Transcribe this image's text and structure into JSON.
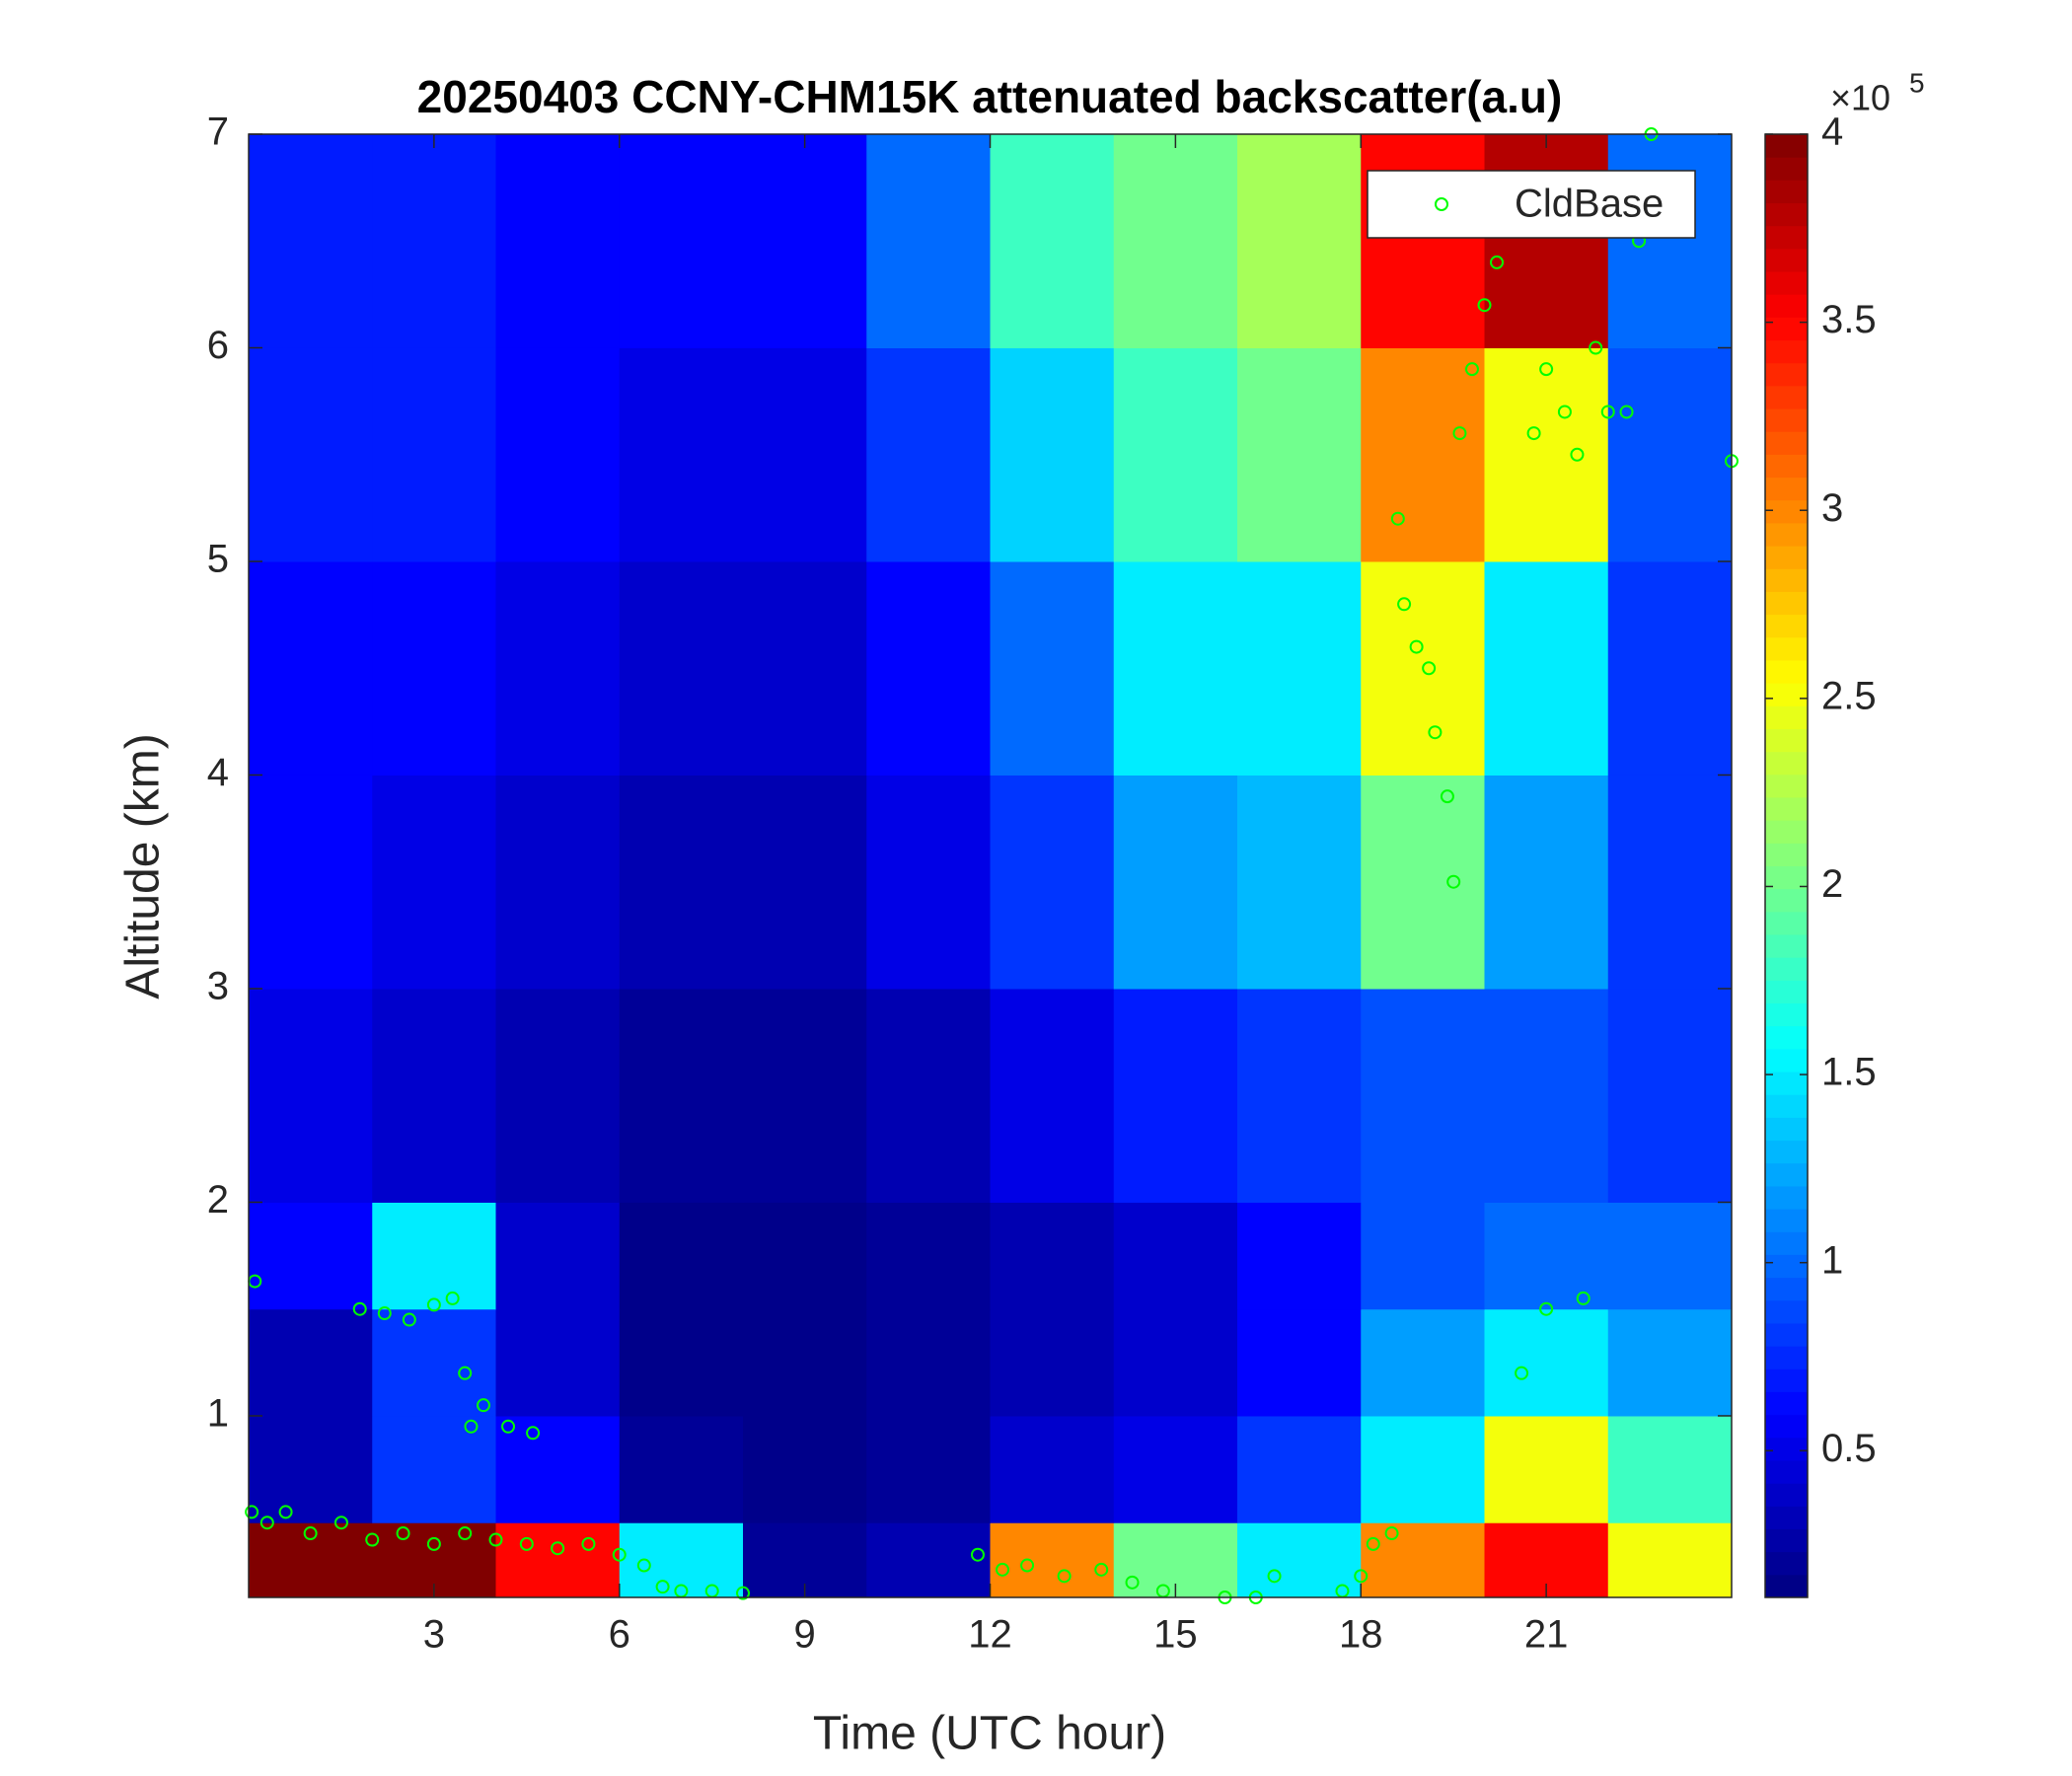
{
  "chart_data": {
    "type": "heatmap",
    "title": "20250403 CCNY-CHM15K attenuated backscatter(a.u)",
    "xlabel": "Time (UTC hour)",
    "ylabel": "Altitude (km)",
    "xlim": [
      0,
      24
    ],
    "xticks": [
      3,
      6,
      9,
      12,
      15,
      18,
      21
    ],
    "ylim": [
      0.15,
      7
    ],
    "yticks": [
      1,
      2,
      3,
      4,
      5,
      6,
      7
    ],
    "colormap": "jet",
    "clim": [
      0.11,
      4
    ],
    "cticks": [
      0.5,
      1,
      1.5,
      2,
      2.5,
      3,
      3.5,
      4
    ],
    "cexponent": {
      "base": "×10",
      "power": "5"
    },
    "x_bins": [
      0,
      2,
      4,
      6,
      8,
      10,
      12,
      14,
      16,
      18,
      20,
      22,
      24
    ],
    "y_bins": [
      0.15,
      0.5,
      1,
      1.5,
      2,
      3,
      4,
      5,
      6,
      7
    ],
    "z": [
      [
        4,
        4,
        3.5,
        1.5,
        0.2,
        0.3,
        3,
        2,
        1.5,
        3,
        3.5,
        2.5
      ],
      [
        0.3,
        0.8,
        0.6,
        0.2,
        0.15,
        0.2,
        0.4,
        0.5,
        0.8,
        1.5,
        2.5,
        1.8
      ],
      [
        0.3,
        0.8,
        0.4,
        0.15,
        0.15,
        0.2,
        0.3,
        0.4,
        0.6,
        1.2,
        1.5,
        1.2
      ],
      [
        0.6,
        1.5,
        0.4,
        0.15,
        0.15,
        0.2,
        0.3,
        0.4,
        0.6,
        0.9,
        1,
        1
      ],
      [
        0.5,
        0.4,
        0.3,
        0.2,
        0.2,
        0.3,
        0.5,
        0.7,
        0.8,
        0.9,
        0.9,
        0.8
      ],
      [
        0.6,
        0.5,
        0.4,
        0.3,
        0.3,
        0.5,
        0.8,
        1.2,
        1.3,
        2,
        1.2,
        0.8
      ],
      [
        0.6,
        0.6,
        0.5,
        0.4,
        0.4,
        0.6,
        1,
        1.5,
        1.5,
        2.5,
        1.5,
        0.8
      ],
      [
        0.7,
        0.7,
        0.6,
        0.5,
        0.5,
        0.8,
        1.4,
        1.8,
        2,
        3,
        2.5,
        0.9
      ],
      [
        0.7,
        0.7,
        0.6,
        0.6,
        0.6,
        1,
        1.8,
        2,
        2.2,
        3.5,
        3.8,
        1
      ]
    ],
    "series": [
      {
        "name": "CldBase",
        "color": "#00ff00",
        "x": [
          0.05,
          0.1,
          0.3,
          0.6,
          1,
          1.5,
          2,
          2.5,
          3,
          3.5,
          4,
          4.5,
          5,
          5.5,
          6,
          6.4,
          6.7,
          7,
          7.5,
          8,
          1.8,
          2.2,
          2.6,
          3,
          3.3,
          3.5,
          3.6,
          3.8,
          4.2,
          4.6,
          11.8,
          12.2,
          12.6,
          13.2,
          13.8,
          14.3,
          14.8,
          15.8,
          16.3,
          16.6,
          17.7,
          18,
          18.2,
          18.5,
          18.6,
          18.7,
          18.9,
          19.1,
          19.2,
          19.4,
          19.5,
          19.6,
          19.8,
          20,
          20.2,
          20.8,
          21,
          21.3,
          21.5,
          21.8,
          22,
          22.3,
          22.5,
          22.7,
          24,
          21,
          21.6,
          20.6
        ],
        "y": [
          0.55,
          1.63,
          0.5,
          0.55,
          0.45,
          0.5,
          0.42,
          0.45,
          0.4,
          0.45,
          0.42,
          0.4,
          0.38,
          0.4,
          0.35,
          0.3,
          0.2,
          0.18,
          0.18,
          0.17,
          1.5,
          1.48,
          1.45,
          1.52,
          1.55,
          1.2,
          0.95,
          1.05,
          0.95,
          0.92,
          0.35,
          0.28,
          0.3,
          0.25,
          0.28,
          0.22,
          0.18,
          0.15,
          0.15,
          0.25,
          0.18,
          0.25,
          0.4,
          0.45,
          5.2,
          4.8,
          4.6,
          4.5,
          4.2,
          3.9,
          3.5,
          5.6,
          5.9,
          6.2,
          6.4,
          5.6,
          5.9,
          5.7,
          5.5,
          6,
          5.7,
          5.7,
          6.5,
          7,
          5.47,
          1.5,
          1.55,
          1.2
        ]
      }
    ]
  }
}
